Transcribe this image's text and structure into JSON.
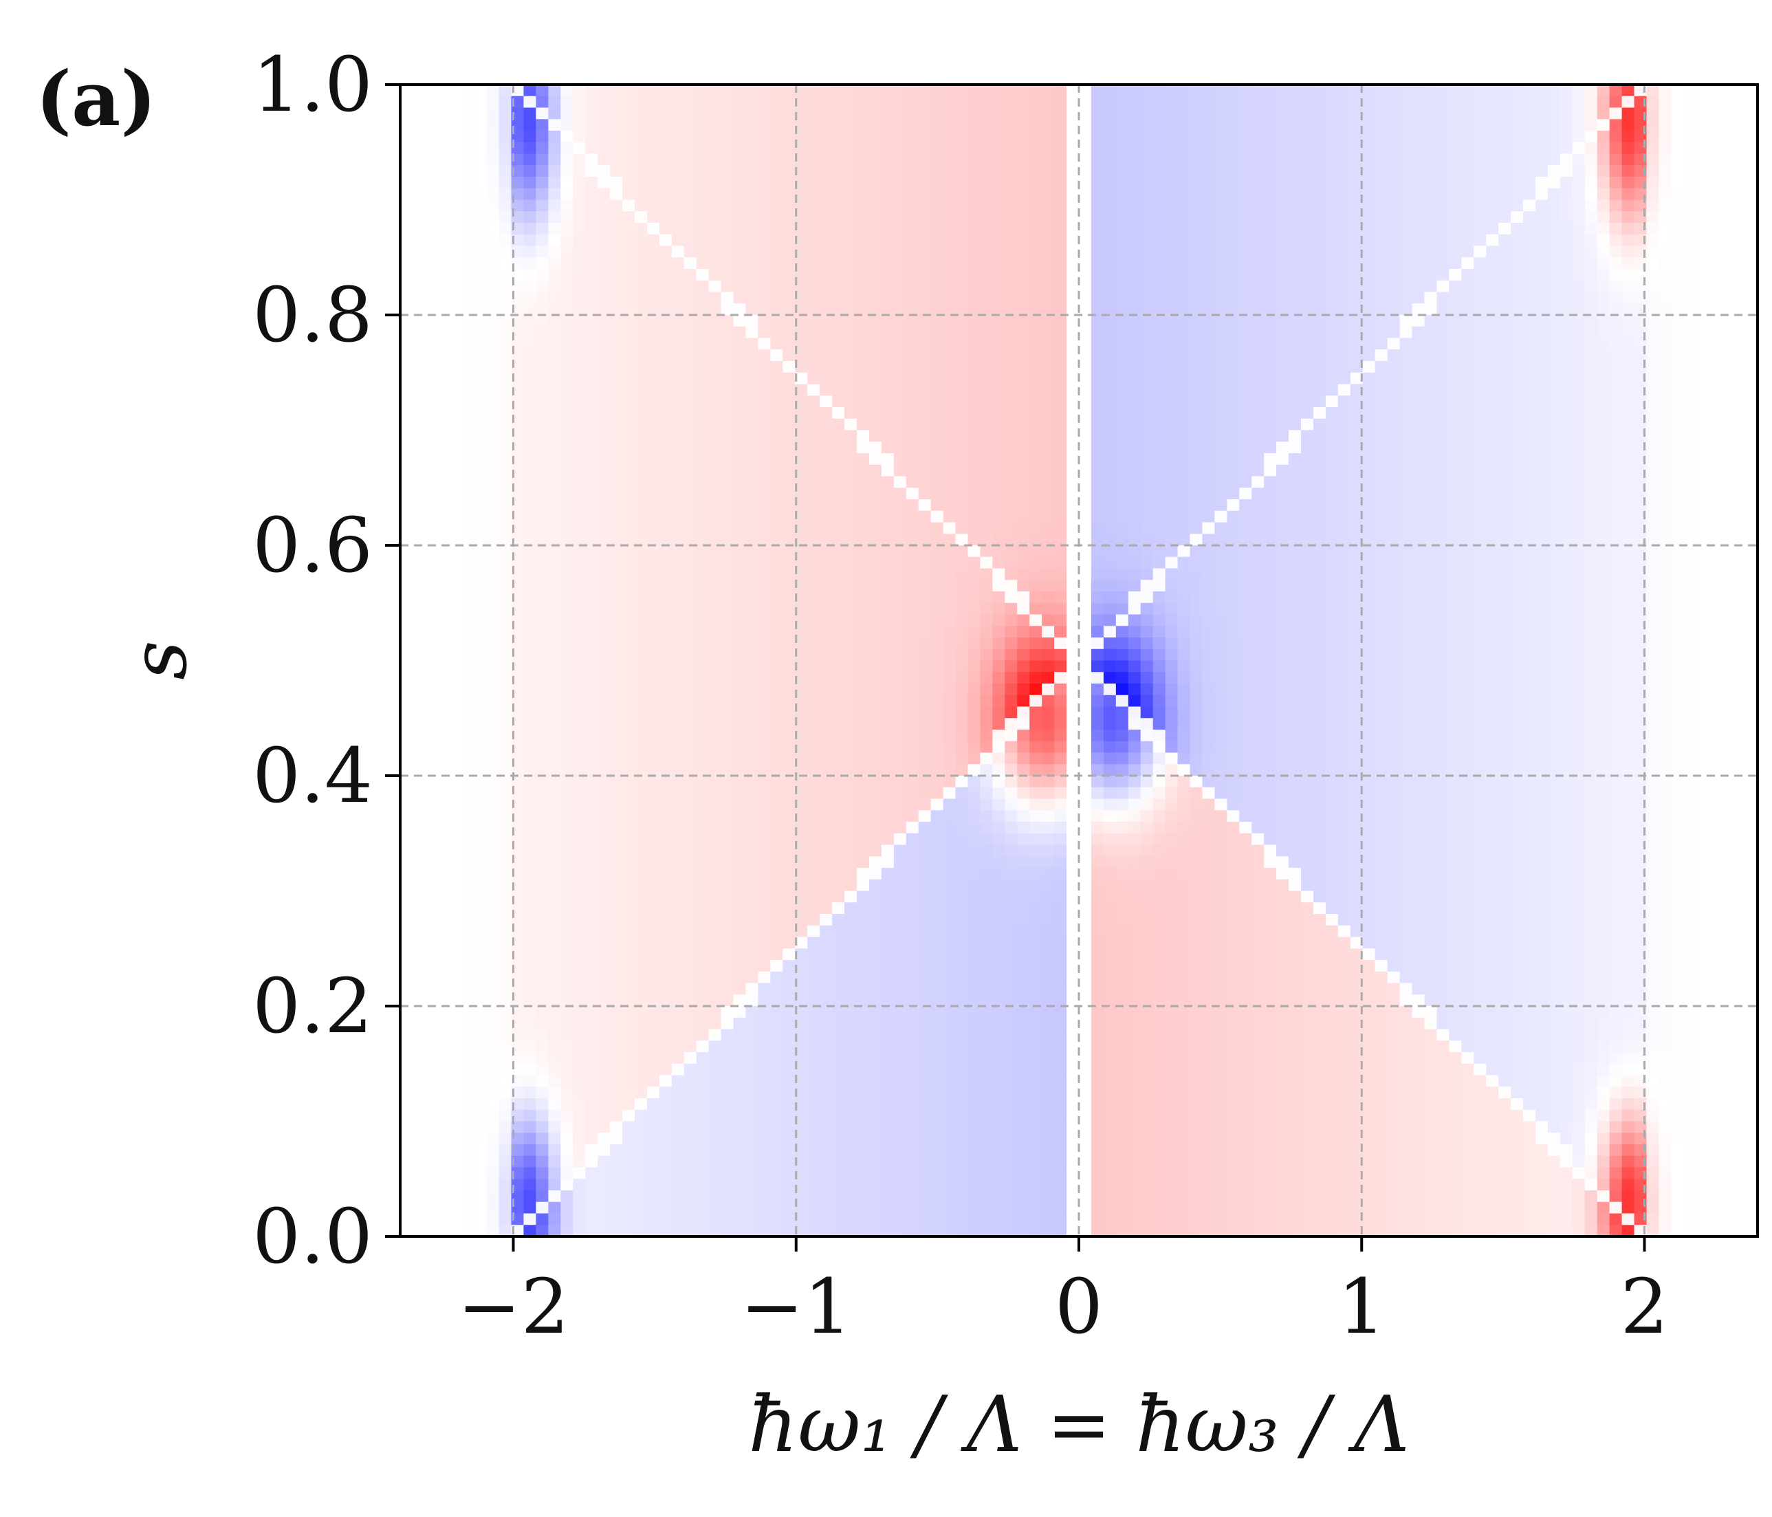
{
  "panel_label": "(a)",
  "chart_data": {
    "type": "heatmap",
    "title": "",
    "xlabel": "ħω₁ / Λ  =  ħω₃ / Λ",
    "ylabel": "s",
    "xlim": [
      -2.4,
      2.4
    ],
    "ylim": [
      0.0,
      1.0
    ],
    "x_ticks": [
      -2,
      -1,
      0,
      1,
      2
    ],
    "x_tick_labels": [
      "−2",
      "−1",
      "0",
      "1",
      "2"
    ],
    "y_ticks": [
      0.0,
      0.2,
      0.4,
      0.6,
      0.8,
      1.0
    ],
    "y_tick_labels": [
      "0.0",
      "0.2",
      "0.4",
      "0.6",
      "0.8",
      "1.0"
    ],
    "grid": true,
    "grid_style": "dashed",
    "colormap": "diverging blue-white-red",
    "colors": {
      "negative": "#0000ff",
      "zero": "#ffffff",
      "positive": "#ff0000",
      "grid": "#aaaaaa"
    },
    "colorbar": false,
    "resolution": {
      "nx": 110,
      "ny": 100
    },
    "features": {
      "white_crossing_lines": [
        {
          "from": [
            -1.9,
            0.0
          ],
          "to": [
            2.0,
            1.0
          ]
        },
        {
          "from": [
            -2.0,
            1.0
          ],
          "to": [
            1.9,
            0.0
          ]
        }
      ],
      "white_gap_lines_x": [
        -2.0,
        0.0,
        2.0
      ],
      "extrema": [
        {
          "x": -1.9,
          "y": 0.95,
          "sign": "negative"
        },
        {
          "x": -1.95,
          "y": 0.03,
          "sign": "negative"
        },
        {
          "x": 1.95,
          "y": 0.97,
          "sign": "positive"
        },
        {
          "x": 1.92,
          "y": 0.03,
          "sign": "positive"
        },
        {
          "x": -0.1,
          "y": 0.45,
          "sign": "positive"
        },
        {
          "x": 0.1,
          "y": 0.45,
          "sign": "negative"
        }
      ]
    }
  }
}
